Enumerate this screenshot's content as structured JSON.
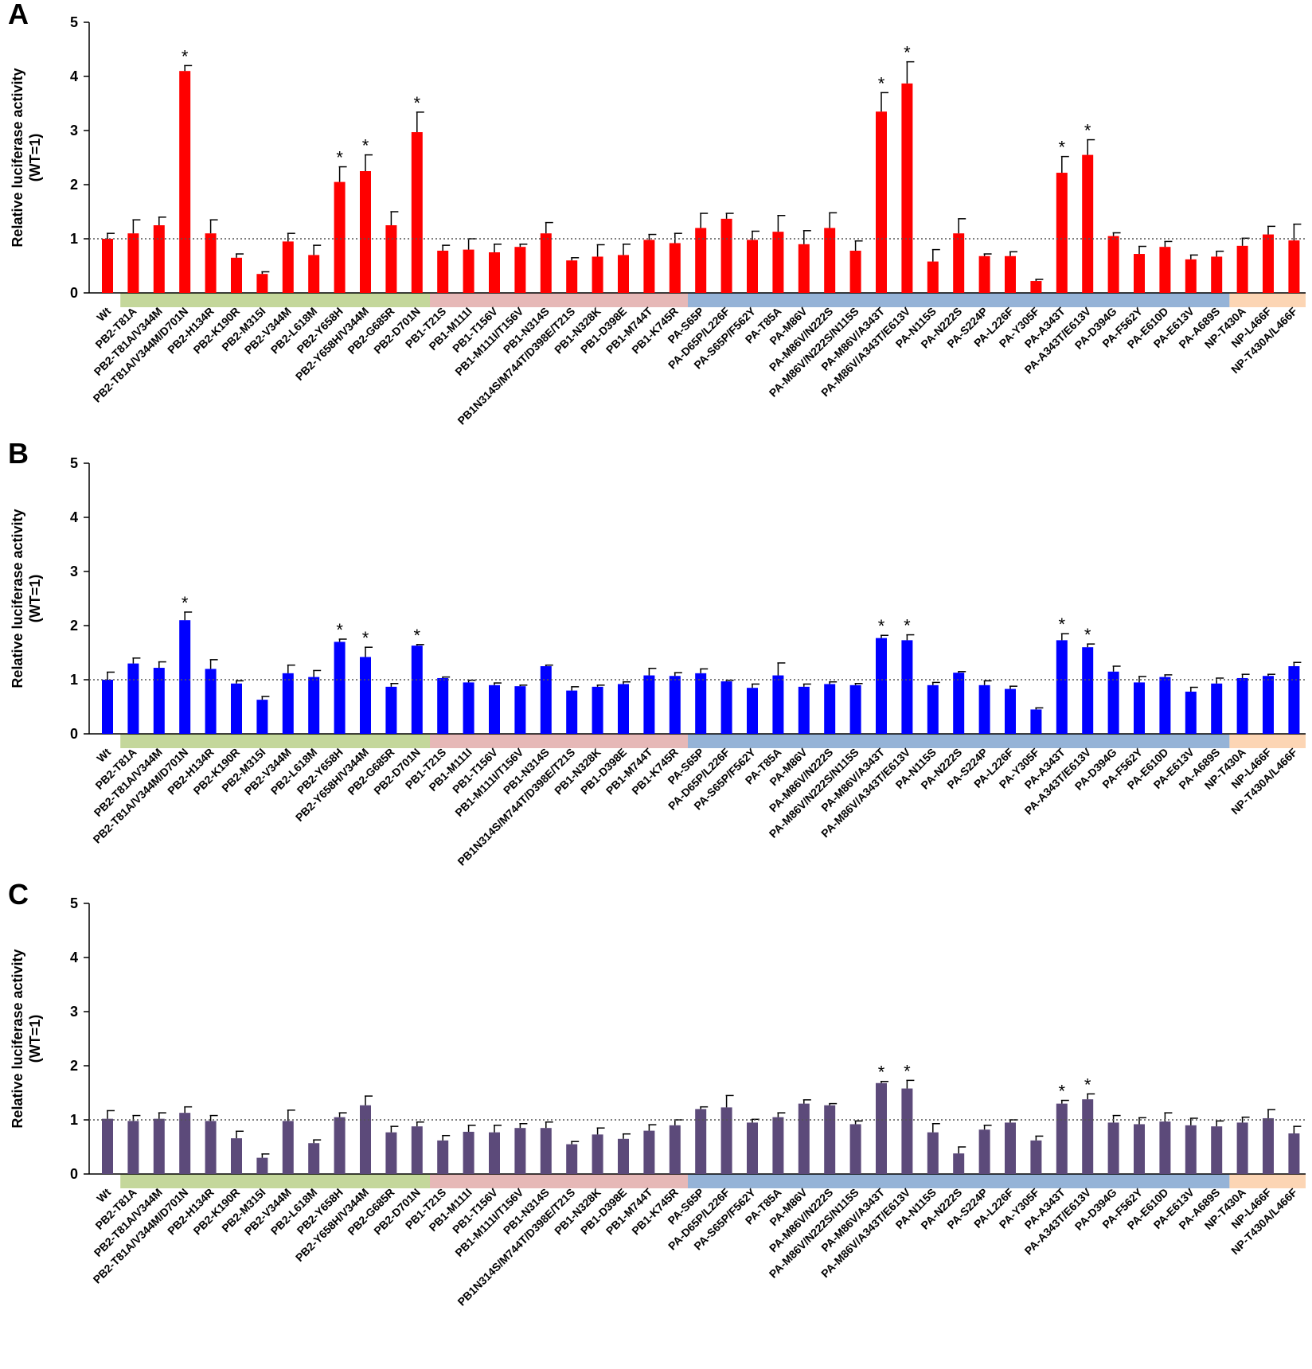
{
  "y_axis_label_line1": "Relative luciferase activity",
  "y_axis_label_line2": "(WT=1)",
  "significance_marker": "*",
  "reference_line": 1,
  "group_colors": {
    "PB2": "#c4d79b",
    "PB1": "#e6b8b7",
    "PA": "#95b3d7",
    "NP": "#fcd5b4"
  },
  "chart_data": [
    {
      "type": "bar",
      "panel": "A",
      "color": "#ff0000",
      "ylim": [
        0,
        5
      ],
      "yticks": [
        "0",
        "1",
        "2",
        "3",
        "4",
        "5"
      ],
      "categories": [
        "Wt",
        "PB2-T81A",
        "PB2-T81A/V344M",
        "PB2-T81A/V344M/D701N",
        "PB2-H134R",
        "PB2-K190R",
        "PB2-M315I",
        "PB2-V344M",
        "PB2-L618M",
        "PB2-Y658H",
        "PB2-Y658H/V344M",
        "PB2-G685R",
        "PB2-D701N",
        "PB1-T21S",
        "PB1-M111I",
        "PB1-T156V",
        "PB1-M111I/T156V",
        "PB1-N314S",
        "PB1N314S/M744T/D398E/T21S",
        "PB1-N328K",
        "PB1-D398E",
        "PB1-M744T",
        "PB1-K745R",
        "PA-S65P",
        "PA-D65P/L226F",
        "PA-S65P/F562Y",
        "PA-T85A",
        "PA-M86V",
        "PA-M86V/N222S",
        "PA-M86V/N222S/N115S",
        "PA-M86V/A343T",
        "PA-M86V/A343T/E613V",
        "PA-N115S",
        "PA-N222S",
        "PA-S224P",
        "PA-L226F",
        "PA-Y305F",
        "PA-A343T",
        "PA-A343T/E613V",
        "PA-D394G",
        "PA-F562Y",
        "PA-E610D",
        "PA-E613V",
        "PA-A689S",
        "NP-T430A",
        "NP-L466F",
        "NP-T430A/L466F"
      ],
      "values": [
        1.0,
        1.1,
        1.25,
        4.1,
        1.1,
        0.65,
        0.35,
        0.95,
        0.7,
        2.05,
        2.25,
        1.25,
        2.97,
        0.78,
        0.8,
        0.75,
        0.85,
        1.1,
        0.6,
        0.67,
        0.7,
        0.98,
        0.92,
        1.2,
        1.37,
        0.98,
        1.13,
        0.9,
        1.2,
        0.78,
        3.35,
        3.87,
        0.58,
        1.1,
        0.68,
        0.68,
        0.22,
        2.22,
        2.55,
        1.05,
        0.72,
        0.85,
        0.62,
        0.67,
        0.87,
        1.08,
        0.97
      ],
      "errors": [
        0.1,
        0.25,
        0.15,
        0.1,
        0.25,
        0.07,
        0.04,
        0.15,
        0.18,
        0.28,
        0.3,
        0.25,
        0.37,
        0.1,
        0.2,
        0.15,
        0.05,
        0.2,
        0.05,
        0.22,
        0.2,
        0.1,
        0.18,
        0.27,
        0.1,
        0.16,
        0.3,
        0.25,
        0.28,
        0.18,
        0.35,
        0.4,
        0.22,
        0.27,
        0.04,
        0.08,
        0.03,
        0.3,
        0.28,
        0.06,
        0.14,
        0.1,
        0.08,
        0.1,
        0.14,
        0.15,
        0.3
      ],
      "significant": [
        3,
        9,
        10,
        12,
        30,
        31,
        37,
        38
      ]
    },
    {
      "type": "bar",
      "panel": "B",
      "color": "#0000ff",
      "ylim": [
        0,
        5
      ],
      "yticks": [
        "0",
        "1",
        "2",
        "3",
        "4",
        "5"
      ],
      "categories": [
        "Wt",
        "PB2-T81A",
        "PB2-T81A/V344M",
        "PB2-T81A/V344M/D701N",
        "PB2-H134R",
        "PB2-K190R",
        "PB2-M315I",
        "PB2-V344M",
        "PB2-L618M",
        "PB2-Y658H",
        "PB2-Y658H/V344M",
        "PB2-G685R",
        "PB2-D701N",
        "PB1-T21S",
        "PB1-M111I",
        "PB1-T156V",
        "PB1-M111I/T156V",
        "PB1-N314S",
        "PB1N314S/M744T/D398E/T21S",
        "PB1-N328K",
        "PB1-D398E",
        "PB1-M744T",
        "PB1-K745R",
        "PA-S65P",
        "PA-D65P/L226F",
        "PA-S65P/F562Y",
        "PA-T85A",
        "PA-M86V",
        "PA-M86V/N222S",
        "PA-M86V/N222S/N115S",
        "PA-M86V/A343T",
        "PA-M86V/A343T/E613V",
        "PA-N115S",
        "PA-N222S",
        "PA-S224P",
        "PA-L226F",
        "PA-Y305F",
        "PA-A343T",
        "PA-A343T/E613V",
        "PA-D394G",
        "PA-F562Y",
        "PA-E610D",
        "PA-E613V",
        "PA-A689S",
        "NP-T430A",
        "NP-L466F",
        "NP-T430A/L466F"
      ],
      "values": [
        1.0,
        1.3,
        1.22,
        2.1,
        1.2,
        0.93,
        0.63,
        1.12,
        1.05,
        1.7,
        1.42,
        0.87,
        1.63,
        1.03,
        0.95,
        0.9,
        0.88,
        1.25,
        0.8,
        0.87,
        0.92,
        1.08,
        1.07,
        1.12,
        0.97,
        0.85,
        1.08,
        0.87,
        0.92,
        0.9,
        1.77,
        1.73,
        0.9,
        1.13,
        0.9,
        0.83,
        0.45,
        1.73,
        1.6,
        1.15,
        0.95,
        1.05,
        0.78,
        0.93,
        1.03,
        1.07,
        1.25
      ],
      "errors": [
        0.14,
        0.1,
        0.11,
        0.15,
        0.17,
        0.05,
        0.06,
        0.15,
        0.12,
        0.05,
        0.18,
        0.06,
        0.02,
        0.02,
        0.04,
        0.04,
        0.02,
        0.02,
        0.07,
        0.03,
        0.04,
        0.13,
        0.06,
        0.08,
        0.02,
        0.07,
        0.23,
        0.05,
        0.04,
        0.03,
        0.05,
        0.1,
        0.05,
        0.02,
        0.08,
        0.05,
        0.03,
        0.12,
        0.06,
        0.1,
        0.11,
        0.04,
        0.08,
        0.1,
        0.07,
        0.03,
        0.07
      ],
      "significant": [
        3,
        9,
        10,
        12,
        30,
        31,
        37,
        38
      ]
    },
    {
      "type": "bar",
      "panel": "C",
      "color": "#5c4a7a",
      "ylim": [
        0,
        5
      ],
      "yticks": [
        "0",
        "1",
        "2",
        "3",
        "4",
        "5"
      ],
      "categories": [
        "Wt",
        "PB2-T81A",
        "PB2-T81A/V344M",
        "PB2-T81A/V344M/D701N",
        "PB2-H134R",
        "PB2-K190R",
        "PB2-M315I",
        "PB2-V344M",
        "PB2-L618M",
        "PB2-Y658H",
        "PB2-Y658H/V344M",
        "PB2-G685R",
        "PB2-D701N",
        "PB1-T21S",
        "PB1-M111I",
        "PB1-T156V",
        "PB1-M111I/T156V",
        "PB1-N314S",
        "PB1N314S/M744T/D398E/T21S",
        "PB1-N328K",
        "PB1-D398E",
        "PB1-M744T",
        "PB1-K745R",
        "PA-S65P",
        "PA-D65P/L226F",
        "PA-S65P/F562Y",
        "PA-T85A",
        "PA-M86V",
        "PA-M86V/N222S",
        "PA-M86V/N222S/N115S",
        "PA-M86V/A343T",
        "PA-M86V/A343T/E613V",
        "PA-N115S",
        "PA-N222S",
        "PA-S224P",
        "PA-L226F",
        "PA-Y305F",
        "PA-A343T",
        "PA-A343T/E613V",
        "PA-D394G",
        "PA-F562Y",
        "PA-E610D",
        "PA-E613V",
        "PA-A689S",
        "NP-T430A",
        "NP-L466F",
        "NP-T430A/L466F"
      ],
      "values": [
        1.02,
        0.98,
        1.02,
        1.13,
        0.98,
        0.66,
        0.3,
        0.98,
        0.57,
        1.05,
        1.27,
        0.77,
        0.88,
        0.62,
        0.78,
        0.77,
        0.85,
        0.85,
        0.55,
        0.73,
        0.65,
        0.8,
        0.9,
        1.2,
        1.23,
        0.95,
        1.05,
        1.3,
        1.27,
        0.92,
        1.68,
        1.58,
        0.77,
        0.38,
        0.82,
        0.95,
        0.62,
        1.3,
        1.38,
        0.95,
        0.92,
        0.97,
        0.9,
        0.88,
        0.95,
        1.03,
        0.75
      ],
      "errors": [
        0.15,
        0.1,
        0.11,
        0.11,
        0.1,
        0.13,
        0.07,
        0.2,
        0.06,
        0.08,
        0.17,
        0.11,
        0.08,
        0.09,
        0.12,
        0.13,
        0.08,
        0.11,
        0.05,
        0.12,
        0.09,
        0.11,
        0.1,
        0.04,
        0.22,
        0.06,
        0.08,
        0.07,
        0.03,
        0.06,
        0.03,
        0.15,
        0.16,
        0.12,
        0.08,
        0.05,
        0.08,
        0.06,
        0.1,
        0.13,
        0.12,
        0.16,
        0.13,
        0.1,
        0.1,
        0.16,
        0.13
      ],
      "significant": [
        30,
        31,
        37,
        38
      ]
    }
  ]
}
